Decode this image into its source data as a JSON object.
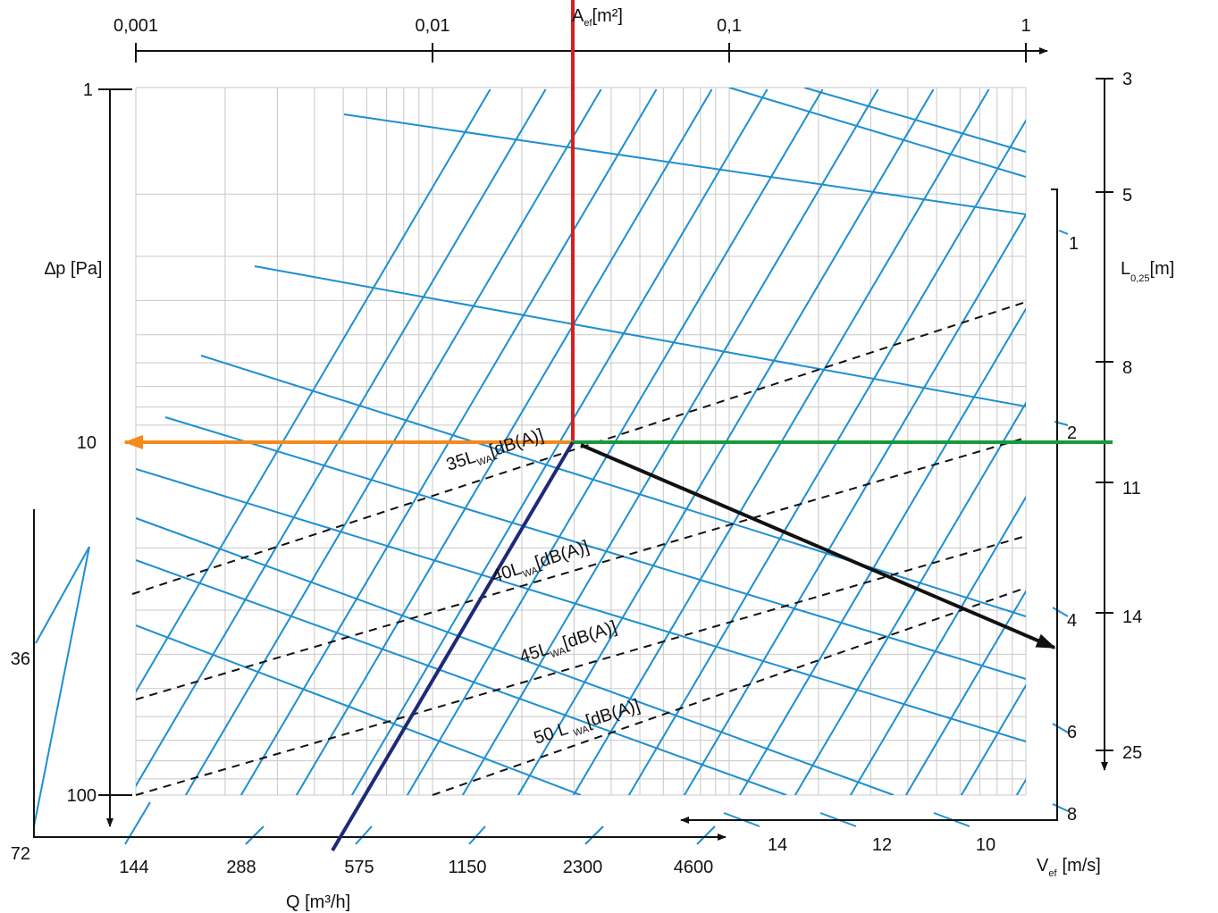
{
  "top_axis": {
    "label": "A",
    "label_sub": "ef",
    "unit": "[m²]",
    "ticks": [
      "0,001",
      "0,01",
      "0,1",
      "1"
    ]
  },
  "left_axis": {
    "label": "∆p [Pa]",
    "ticks": [
      "1",
      "10",
      "100"
    ]
  },
  "right_axis": {
    "label": "L",
    "label_sub": "0,25",
    "unit": "[m]",
    "ticks": [
      "3",
      "5",
      "8",
      "11",
      "14",
      "25"
    ]
  },
  "inner_right_axis": {
    "ticks": [
      "1",
      "2",
      "4",
      "6",
      "8"
    ]
  },
  "left_outer_axis": {
    "ticks": [
      "36",
      "72"
    ]
  },
  "bottom_axis": {
    "label": "Q [m³/h]",
    "ticks": [
      "144",
      "288",
      "575",
      "1150",
      "2300",
      "4600"
    ]
  },
  "velocity_axis": {
    "label": "V",
    "label_sub": "ef",
    "unit": "[m/s]",
    "ticks": [
      "14",
      "12",
      "10"
    ]
  },
  "noise_lines": [
    {
      "prefix": "35L",
      "sub": "WA",
      "suffix": "[dB(A)]"
    },
    {
      "prefix": "40L",
      "sub": "WA",
      "suffix": "[dB(A)]"
    },
    {
      "prefix": "45L",
      "sub": "WA",
      "suffix": "[dB(A)]"
    },
    {
      "prefix": "50 L ",
      "sub": "WA",
      "suffix": "[dB(A)]"
    }
  ]
}
